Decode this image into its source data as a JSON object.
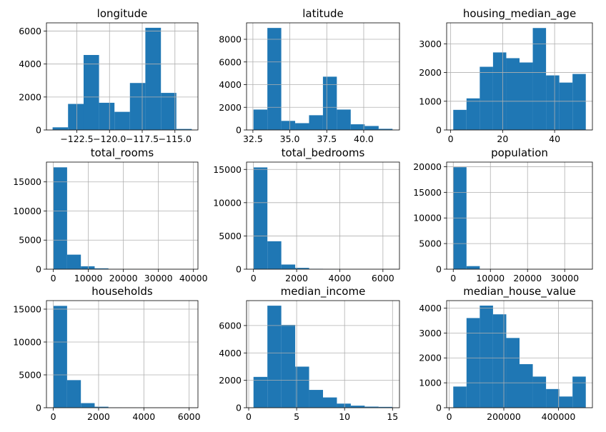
{
  "chart_data": [
    {
      "type": "bar",
      "title": "longitude",
      "bins": [
        [
          -124.35,
          -123.17
        ],
        [
          -123.17,
          -121.98
        ],
        [
          -121.98,
          -120.8
        ],
        [
          -120.8,
          -119.62
        ],
        [
          -119.62,
          -118.44
        ],
        [
          -118.44,
          -117.26
        ],
        [
          -117.26,
          -116.07
        ],
        [
          -116.07,
          -114.89
        ],
        [
          -114.89,
          -113.71
        ]
      ],
      "values": [
        160,
        1580,
        4550,
        1650,
        1100,
        2850,
        6200,
        2250,
        60
      ],
      "xlim": [
        -124.82,
        -113.24
      ],
      "ylim": [
        0,
        6500
      ],
      "xticks": [
        -122.5,
        -120.0,
        -117.5,
        -115.0
      ],
      "xtick_labels": [
        "−122.5",
        "−120.0",
        "−117.5",
        "−115.0"
      ],
      "yticks": [
        0,
        2000,
        4000,
        6000
      ],
      "ytick_labels": [
        "0",
        "2000",
        "4000",
        "6000"
      ],
      "color": "#1f77b4",
      "grid": true
    },
    {
      "type": "bar",
      "title": "latitude",
      "bins": [
        [
          32.54,
          33.48
        ],
        [
          33.48,
          34.42
        ],
        [
          34.42,
          35.36
        ],
        [
          35.36,
          36.3
        ],
        [
          36.3,
          37.24
        ],
        [
          37.24,
          38.18
        ],
        [
          38.18,
          39.12
        ],
        [
          39.12,
          40.07
        ],
        [
          40.07,
          41.01
        ],
        [
          41.01,
          41.95
        ]
      ],
      "values": [
        1800,
        9000,
        800,
        600,
        1300,
        4700,
        1800,
        500,
        350,
        100
      ],
      "xlim": [
        32.07,
        42.42
      ],
      "ylim": [
        0,
        9450
      ],
      "xticks": [
        32.5,
        35.0,
        37.5,
        40.0
      ],
      "xtick_labels": [
        "32.5",
        "35.0",
        "37.5",
        "40.0"
      ],
      "yticks": [
        0,
        2000,
        4000,
        6000,
        8000
      ],
      "ytick_labels": [
        "0",
        "2000",
        "4000",
        "6000",
        "8000"
      ],
      "color": "#1f77b4",
      "grid": true
    },
    {
      "type": "bar",
      "title": "housing_median_age",
      "bins": [
        [
          1,
          6.1
        ],
        [
          6.1,
          11.2
        ],
        [
          11.2,
          16.3
        ],
        [
          16.3,
          21.4
        ],
        [
          21.4,
          26.5
        ],
        [
          26.5,
          31.6
        ],
        [
          31.6,
          36.7
        ],
        [
          36.7,
          41.8
        ],
        [
          41.8,
          46.9
        ],
        [
          46.9,
          52
        ]
      ],
      "values": [
        700,
        1100,
        2200,
        2700,
        2500,
        2350,
        3550,
        1900,
        1650,
        1950
      ],
      "xlim": [
        -1.55,
        54.55
      ],
      "ylim": [
        0,
        3730
      ],
      "xticks": [
        0,
        20,
        40
      ],
      "xtick_labels": [
        "0",
        "20",
        "40"
      ],
      "yticks": [
        0,
        1000,
        2000,
        3000
      ],
      "ytick_labels": [
        "0",
        "1000",
        "2000",
        "3000"
      ],
      "color": "#1f77b4",
      "grid": true
    },
    {
      "type": "bar",
      "title": "total_rooms",
      "bins": [
        [
          2,
          3934
        ],
        [
          3934,
          7866
        ],
        [
          7866,
          11798
        ],
        [
          11798,
          15730
        ],
        [
          15730,
          19662
        ],
        [
          19662,
          23594
        ],
        [
          23594,
          27526
        ],
        [
          27526,
          31458
        ],
        [
          31458,
          35390
        ],
        [
          35390,
          39320
        ]
      ],
      "values": [
        17500,
        2500,
        500,
        150,
        60,
        25,
        10,
        5,
        3,
        2
      ],
      "xlim": [
        -1964,
        41286
      ],
      "ylim": [
        0,
        18400
      ],
      "xticks": [
        0,
        10000,
        20000,
        30000,
        40000
      ],
      "xtick_labels": [
        "0",
        "10000",
        "20000",
        "30000",
        "40000"
      ],
      "yticks": [
        0,
        5000,
        10000,
        15000
      ],
      "ytick_labels": [
        "0",
        "5000",
        "10000",
        "15000"
      ],
      "color": "#1f77b4",
      "grid": true
    },
    {
      "type": "bar",
      "title": "total_bedrooms",
      "bins": [
        [
          1,
          645.5
        ],
        [
          645.5,
          1290
        ],
        [
          1290,
          1934.5
        ],
        [
          1934.5,
          2579
        ],
        [
          2579,
          3223.5
        ],
        [
          3223.5,
          3868
        ],
        [
          3868,
          4512.5
        ],
        [
          4512.5,
          5157
        ],
        [
          5157,
          5801.5
        ],
        [
          5801.5,
          6445
        ]
      ],
      "values": [
        15300,
        4200,
        700,
        200,
        60,
        30,
        15,
        5,
        3,
        2
      ],
      "xlim": [
        -321,
        6767
      ],
      "ylim": [
        0,
        16100
      ],
      "xticks": [
        0,
        2000,
        4000,
        6000
      ],
      "xtick_labels": [
        "0",
        "2000",
        "4000",
        "6000"
      ],
      "yticks": [
        0,
        5000,
        10000,
        15000
      ],
      "ytick_labels": [
        "0",
        "5000",
        "10000",
        "15000"
      ],
      "color": "#1f77b4",
      "grid": true
    },
    {
      "type": "bar",
      "title": "population",
      "bins": [
        [
          3,
          3570
        ],
        [
          3570,
          7137
        ],
        [
          7137,
          10704
        ],
        [
          10704,
          14271
        ],
        [
          14271,
          17838
        ],
        [
          17838,
          21405
        ],
        [
          21405,
          24972
        ],
        [
          24972,
          28539
        ],
        [
          28539,
          32106
        ],
        [
          32106,
          35682
        ]
      ],
      "values": [
        19900,
        600,
        60,
        20,
        5,
        3,
        1,
        1,
        1,
        1
      ],
      "xlim": [
        -1781,
        37466
      ],
      "ylim": [
        0,
        20900
      ],
      "xticks": [
        0,
        10000,
        20000,
        30000
      ],
      "xtick_labels": [
        "0",
        "10000",
        "20000",
        "30000"
      ],
      "yticks": [
        0,
        5000,
        10000,
        15000,
        20000
      ],
      "ytick_labels": [
        "0",
        "5000",
        "10000",
        "15000",
        "20000"
      ],
      "color": "#1f77b4",
      "grid": true
    },
    {
      "type": "bar",
      "title": "households",
      "bins": [
        [
          1,
          609.4
        ],
        [
          609.4,
          1217.8
        ],
        [
          1217.8,
          1826.2
        ],
        [
          1826.2,
          2434.6
        ],
        [
          2434.6,
          3043
        ],
        [
          3043,
          3651.4
        ],
        [
          3651.4,
          4259.8
        ],
        [
          4259.8,
          4868.2
        ],
        [
          4868.2,
          5476.6
        ],
        [
          5476.6,
          6085
        ]
      ],
      "values": [
        15500,
        4200,
        700,
        150,
        40,
        15,
        5,
        3,
        2,
        2
      ],
      "xlim": [
        -303,
        6389
      ],
      "ylim": [
        0,
        16300
      ],
      "xticks": [
        0,
        2000,
        4000,
        6000
      ],
      "xtick_labels": [
        "0",
        "2000",
        "4000",
        "6000"
      ],
      "yticks": [
        0,
        5000,
        10000,
        15000
      ],
      "ytick_labels": [
        "0",
        "5000",
        "10000",
        "15000"
      ],
      "color": "#1f77b4",
      "grid": true
    },
    {
      "type": "bar",
      "title": "median_income",
      "bins": [
        [
          0.5,
          1.95
        ],
        [
          1.95,
          3.4
        ],
        [
          3.4,
          4.85
        ],
        [
          4.85,
          6.3
        ],
        [
          6.3,
          7.75
        ],
        [
          7.75,
          9.2
        ],
        [
          9.2,
          10.65
        ],
        [
          10.65,
          12.1
        ],
        [
          12.1,
          13.55
        ],
        [
          13.55,
          15
        ]
      ],
      "values": [
        2250,
        7450,
        6050,
        3000,
        1300,
        750,
        300,
        150,
        80,
        60
      ],
      "xlim": [
        -0.225,
        15.725
      ],
      "ylim": [
        0,
        7820
      ],
      "xticks": [
        0,
        5,
        10,
        15
      ],
      "xtick_labels": [
        "0",
        "5",
        "10",
        "15"
      ],
      "yticks": [
        0,
        2000,
        4000,
        6000
      ],
      "ytick_labels": [
        "0",
        "2000",
        "4000",
        "6000"
      ],
      "color": "#1f77b4",
      "grid": true
    },
    {
      "type": "bar",
      "title": "median_house_value",
      "bins": [
        [
          15000,
          63500
        ],
        [
          63500,
          112000
        ],
        [
          112000,
          160500
        ],
        [
          160500,
          209000
        ],
        [
          209000,
          257500
        ],
        [
          257500,
          306000
        ],
        [
          306000,
          354500
        ],
        [
          354500,
          403000
        ],
        [
          403000,
          451500
        ],
        [
          451500,
          500000
        ]
      ],
      "values": [
        850,
        3600,
        4100,
        3750,
        2800,
        1750,
        1250,
        750,
        450,
        1250
      ],
      "xlim": [
        -9250,
        524250
      ],
      "ylim": [
        0,
        4300
      ],
      "xticks": [
        0,
        200000,
        400000
      ],
      "xtick_labels": [
        "0",
        "200000",
        "400000"
      ],
      "yticks": [
        0,
        1000,
        2000,
        3000,
        4000
      ],
      "ytick_labels": [
        "0",
        "1000",
        "2000",
        "3000",
        "4000"
      ],
      "color": "#1f77b4",
      "grid": true
    }
  ]
}
